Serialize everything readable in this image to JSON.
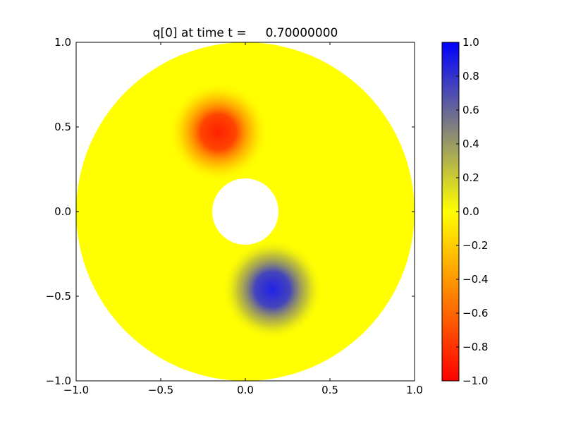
{
  "chart_data": {
    "type": "heatmap",
    "title": "q[0] at time t =     0.70000000",
    "xlabel": "",
    "ylabel": "",
    "xlim": [
      -1.0,
      1.0
    ],
    "ylim": [
      -1.0,
      1.0
    ],
    "xticks": [
      "−1.0",
      "−0.5",
      "0.0",
      "0.5",
      "1.0"
    ],
    "yticks": [
      "−1.0",
      "−0.5",
      "0.0",
      "0.5",
      "1.0"
    ],
    "domain": {
      "shape": "annulus",
      "inner_radius": 0.2,
      "outer_radius": 1.0,
      "background_value": 0.0
    },
    "features": [
      {
        "name": "negative-blob",
        "x": -0.16,
        "y": 0.47,
        "peak_value": -0.9,
        "radius": 0.22
      },
      {
        "name": "positive-blob",
        "x": 0.16,
        "y": -0.46,
        "peak_value": 0.9,
        "radius": 0.22
      }
    ],
    "colorbar": {
      "range": [
        -1.0,
        1.0
      ],
      "ticks": [
        "1.0",
        "0.8",
        "0.6",
        "0.4",
        "0.2",
        "0.0",
        "−0.2",
        "−0.4",
        "−0.6",
        "−0.8",
        "−1.0"
      ],
      "colors": {
        "min": "#ff0000",
        "mid": "#ffff00",
        "max": "#0000ff"
      }
    }
  }
}
